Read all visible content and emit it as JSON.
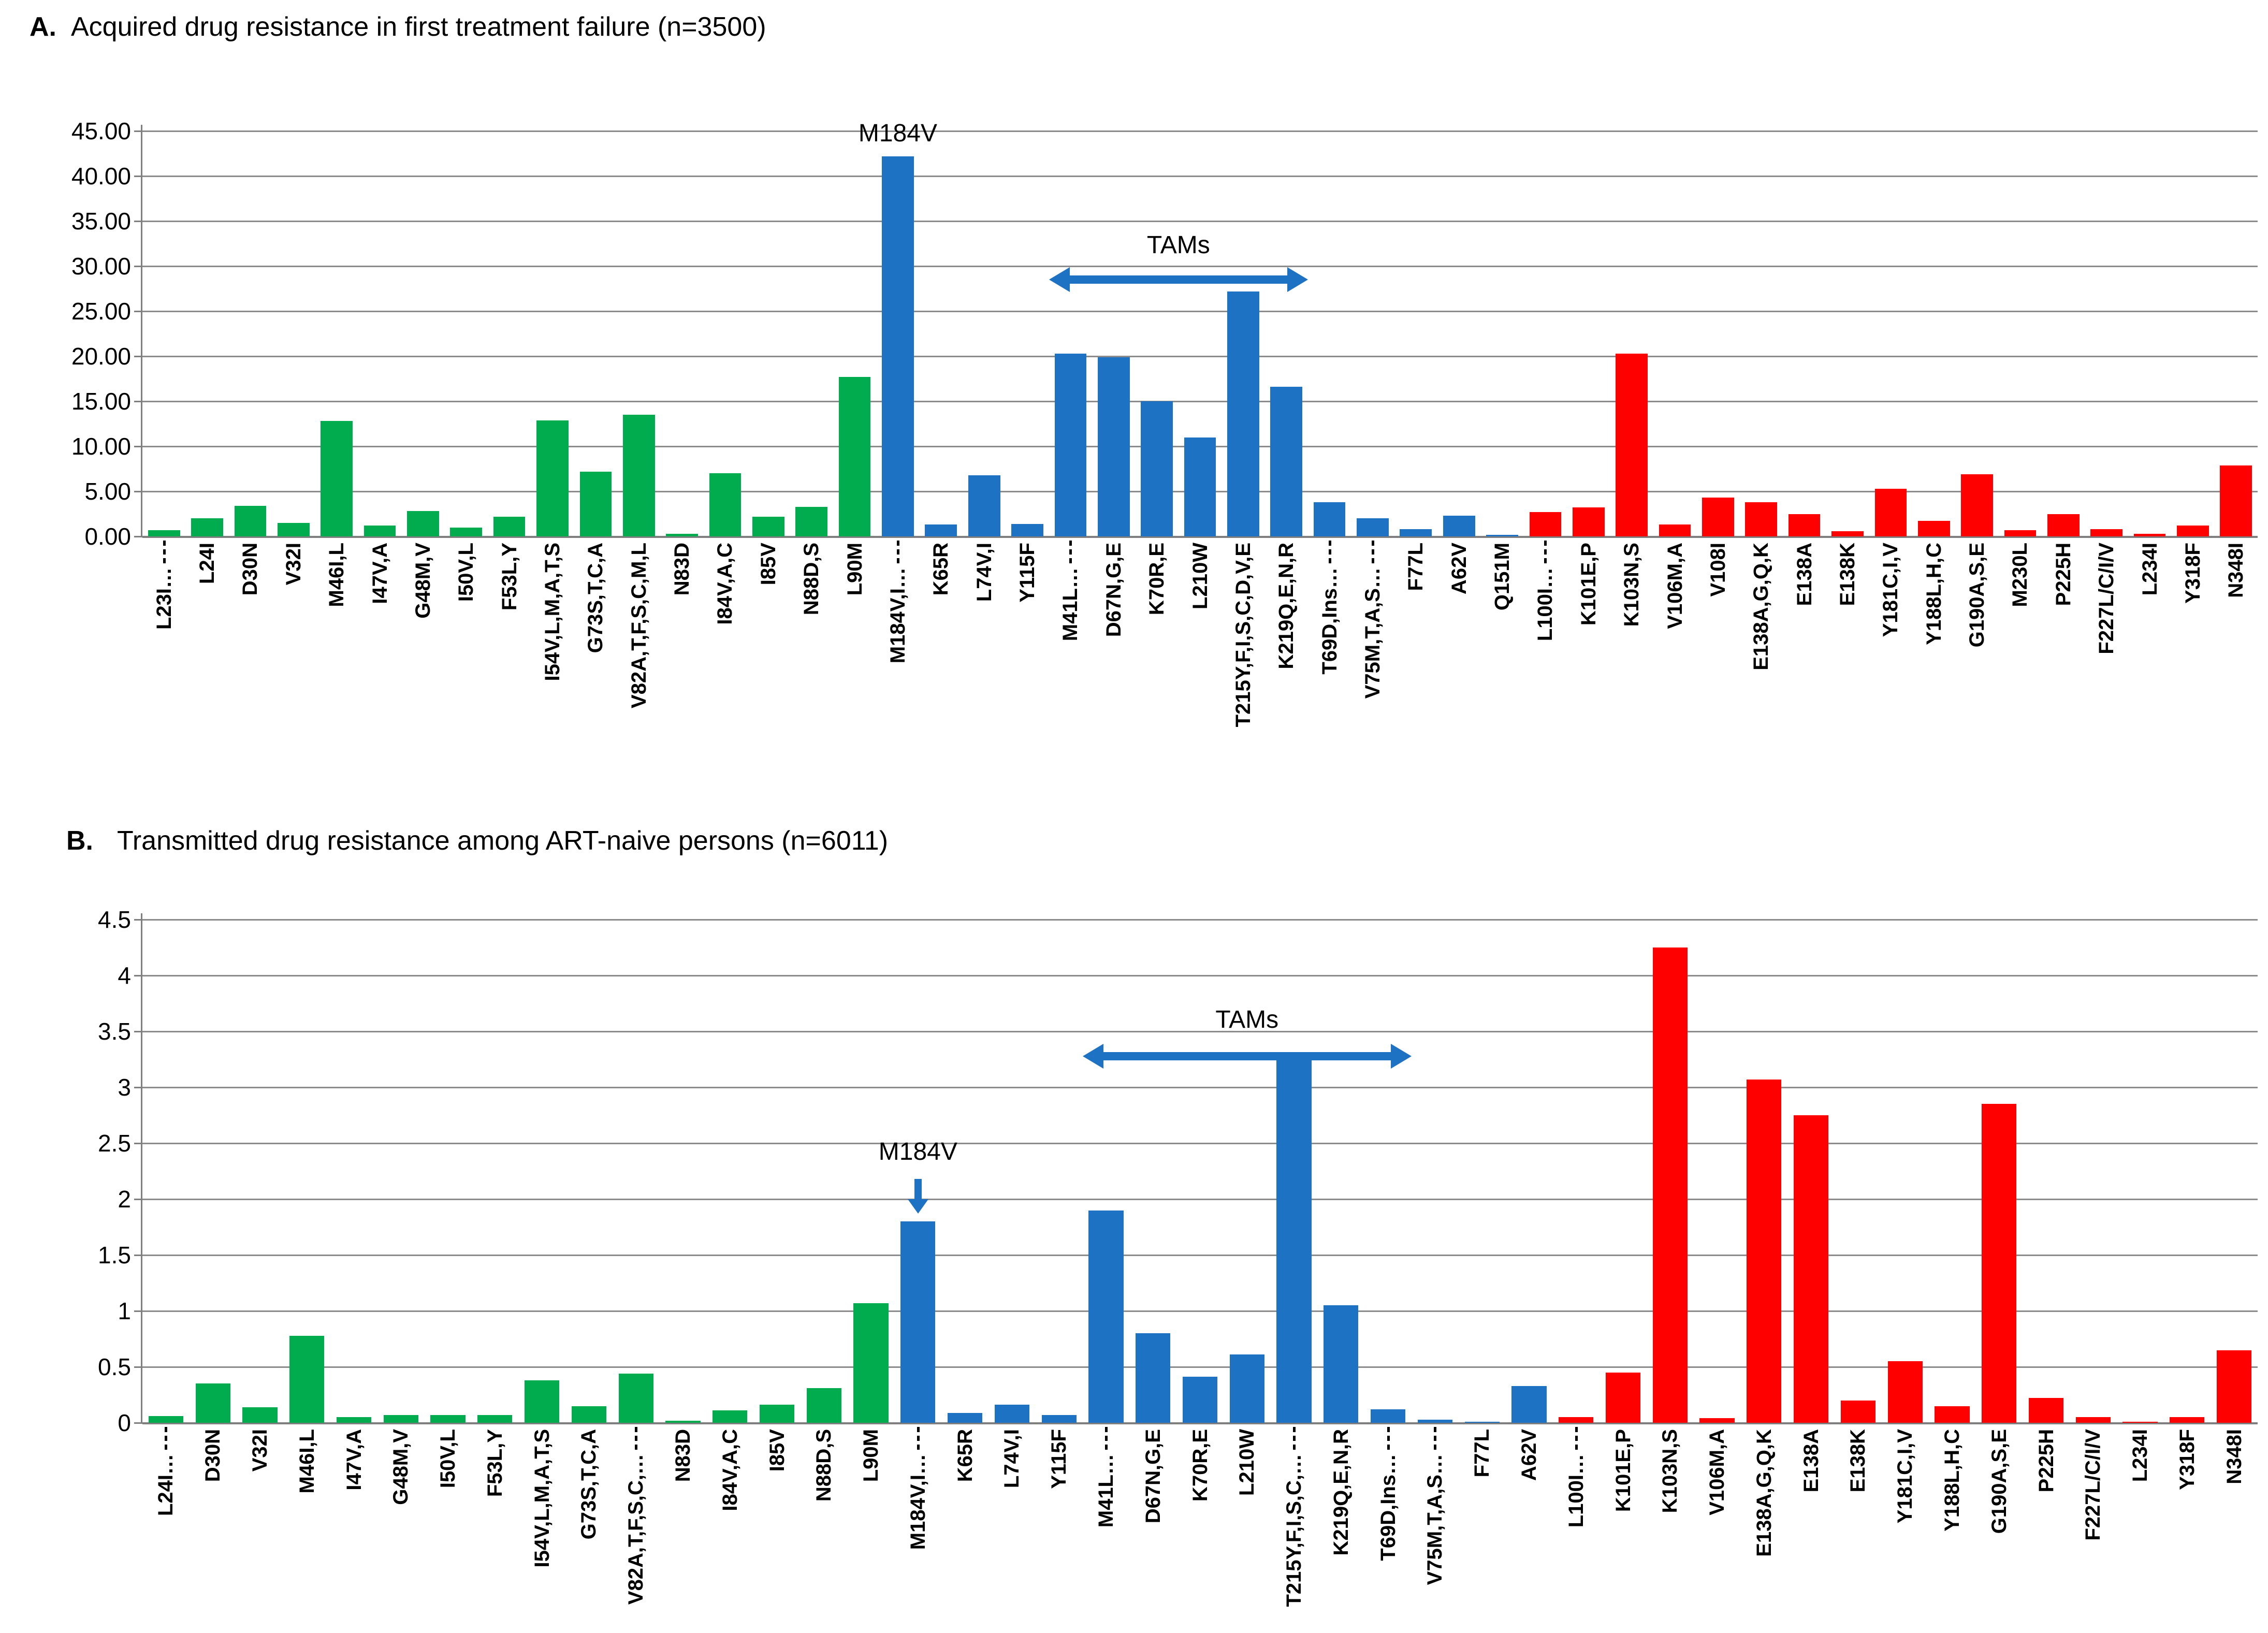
{
  "figure": {
    "background": "#FFFFFF"
  },
  "colors": {
    "pi": "#00AC4E",
    "nrti": "#1E72C4",
    "nnrti": "#FF0000",
    "grid": "#8C8C8C",
    "axis": "#7F7F7F",
    "annotation_blue": "#1E72C4"
  },
  "chart_data": [
    {
      "id": "acquired",
      "type": "bar",
      "title_prefix": "A.",
      "title": "Acquired drug resistance in first treatment failure (n=3500)",
      "ylim": [
        0,
        45
      ],
      "ystep": 5,
      "y_tick_labels": [
        "45.00",
        "40.00",
        "35.00",
        "30.00",
        "25.00",
        "20.00",
        "15.00",
        "10.00",
        "5.00",
        "0.00"
      ],
      "grid": true,
      "legend_position": "none",
      "categories": [
        "L23I…",
        "L24I",
        "D30N",
        "V32I",
        "M46I,L",
        "I47V,A",
        "G48M,V",
        "I50V,L",
        "F53L,Y",
        "I54V,L,M,A,T,S",
        "G73S,T,C,A",
        "V82A,T,F,S,C,M,L",
        "N83D",
        "I84V,A,C",
        "I85V",
        "N88D,S",
        "L90M",
        "M184V,I…",
        "K65R",
        "L74V,I",
        "Y115F",
        "M41L…",
        "D67N,G,E",
        "K70R,E",
        "L210W",
        "T215Y,F,I,S,C,D,V,E",
        "K219Q,E,N,R",
        "T69D,Ins…",
        "V75M,T,A,S…",
        "F77L",
        "A62V",
        "Q151M",
        "L100I…",
        "K101E,P",
        "K103N,S",
        "V106M,A",
        "V108I",
        "E138A,G,Q,K",
        "E138A",
        "E138K",
        "Y181C,I,V",
        "Y188L,H,C",
        "G190A,S,E",
        "M230L",
        "P225H",
        "F227L/C/I/V",
        "L234I",
        "Y318F",
        "N348I"
      ],
      "values": [
        0.7,
        2.0,
        3.4,
        1.5,
        12.8,
        1.2,
        2.8,
        1.0,
        2.2,
        12.9,
        7.2,
        13.5,
        0.3,
        7.0,
        2.2,
        3.3,
        17.7,
        42.2,
        1.3,
        6.8,
        1.4,
        20.3,
        19.9,
        15.0,
        11.0,
        27.2,
        16.6,
        3.8,
        2.0,
        0.8,
        2.3,
        0.2,
        2.7,
        3.2,
        20.3,
        1.3,
        4.3,
        3.8,
        2.5,
        0.6,
        5.3,
        1.7,
        6.9,
        0.7,
        2.5,
        0.8,
        0.3,
        1.2,
        7.9
      ],
      "groups": [
        "pi",
        "pi",
        "pi",
        "pi",
        "pi",
        "pi",
        "pi",
        "pi",
        "pi",
        "pi",
        "pi",
        "pi",
        "pi",
        "pi",
        "pi",
        "pi",
        "pi",
        "nrti",
        "nrti",
        "nrti",
        "nrti",
        "nrti",
        "nrti",
        "nrti",
        "nrti",
        "nrti",
        "nrti",
        "nrti",
        "nrti",
        "nrti",
        "nrti",
        "nrti",
        "nnrti",
        "nnrti",
        "nnrti",
        "nnrti",
        "nnrti",
        "nnrti",
        "nnrti",
        "nnrti",
        "nnrti",
        "nnrti",
        "nnrti",
        "nnrti",
        "nnrti",
        "nnrti",
        "nnrti",
        "nnrti",
        "nnrti"
      ],
      "annotations": {
        "m184v": {
          "text": "M184V",
          "target": "M184V,I…",
          "text_y": 44.7,
          "arrow": false
        },
        "tams": {
          "text": "TAMs",
          "from": "M41L…",
          "to": "K219Q,E,N,R",
          "arrow_y": 28.5,
          "text_y": 32.3
        }
      }
    },
    {
      "id": "transmitted",
      "type": "bar",
      "title_prefix": "B.",
      "title": "Transmitted drug resistance among ART-naive persons (n=6011)",
      "ylim": [
        0,
        4.5
      ],
      "ystep": 0.5,
      "y_tick_labels": [
        "4.5",
        "4",
        "3.5",
        "3",
        "2.5",
        "2",
        "1.5",
        "1",
        "0.5",
        "0"
      ],
      "grid": true,
      "legend_position": "none",
      "categories": [
        "L24I…",
        "D30N",
        "V32I",
        "M46I,L",
        "I47V,A",
        "G48M,V",
        "I50V,L",
        "F53L,Y",
        "I54V,L,M,A,T,S",
        "G73S,T,C,A",
        "V82A,T,F,S,C,…",
        "N83D",
        "I84V,A,C",
        "I85V",
        "N88D,S",
        "L90M",
        "M184V,I…",
        "K65R",
        "L74V,I",
        "Y115F",
        "M41L…",
        "D67N,G,E",
        "K70R,E",
        "L210W",
        "T215Y,F,I,S,C,…",
        "K219Q,E,N,R",
        "T69D,Ins…",
        "V75M,T,A,S…",
        "F77L",
        "A62V",
        "L100I…",
        "K101E,P",
        "K103N,S",
        "V106M,A",
        "E138A,G,Q,K",
        "E138A",
        "E138K",
        "Y181C,I,V",
        "Y188L,H,C",
        "G190A,S,E",
        "P225H",
        "F227L/C/I/V",
        "L234I",
        "Y318F",
        "N348I"
      ],
      "values": [
        0.06,
        0.35,
        0.14,
        0.78,
        0.05,
        0.07,
        0.07,
        0.07,
        0.38,
        0.15,
        0.44,
        0.02,
        0.11,
        0.16,
        0.31,
        1.07,
        1.8,
        0.09,
        0.16,
        0.07,
        1.9,
        0.8,
        0.41,
        0.61,
        3.25,
        1.05,
        0.12,
        0.03,
        0.01,
        0.33,
        0.05,
        0.45,
        4.25,
        0.04,
        3.07,
        2.75,
        0.2,
        0.55,
        0.15,
        2.85,
        0.22,
        0.05,
        0.01,
        0.05,
        0.65
      ],
      "groups": [
        "pi",
        "pi",
        "pi",
        "pi",
        "pi",
        "pi",
        "pi",
        "pi",
        "pi",
        "pi",
        "pi",
        "pi",
        "pi",
        "pi",
        "pi",
        "pi",
        "nrti",
        "nrti",
        "nrti",
        "nrti",
        "nrti",
        "nrti",
        "nrti",
        "nrti",
        "nrti",
        "nrti",
        "nrti",
        "nrti",
        "nrti",
        "nrti",
        "nnrti",
        "nnrti",
        "nnrti",
        "nnrti",
        "nnrti",
        "nnrti",
        "nnrti",
        "nnrti",
        "nnrti",
        "nnrti",
        "nnrti",
        "nnrti",
        "nnrti",
        "nnrti",
        "nnrti"
      ],
      "annotations": {
        "m184v": {
          "text": "M184V",
          "target": "M184V,I…",
          "text_y": 2.42,
          "arrow": true,
          "arrow_top": 2.18,
          "arrow_bottom": 1.87
        },
        "tams": {
          "text": "TAMs",
          "from": "M41L…",
          "to": "T69D,Ins…",
          "arrow_y": 3.28,
          "text_y": 3.6
        }
      }
    }
  ]
}
